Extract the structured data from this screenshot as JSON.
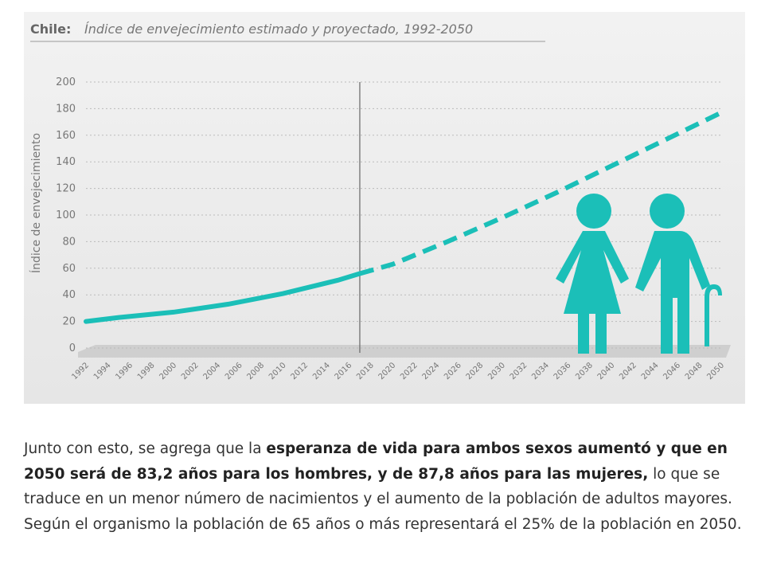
{
  "chart_data": {
    "type": "line",
    "title_prefix": "Chile:",
    "title": "Índice de envejecimiento estimado y proyectado, 1992-2050",
    "y_label": "Índice de envejecimiento",
    "x": [
      1992,
      1995,
      2000,
      2005,
      2010,
      2015,
      2017,
      2020,
      2025,
      2030,
      2035,
      2040,
      2045,
      2050
    ],
    "series": [
      {
        "color": "#1bbfb8",
        "dash": false,
        "values": [
          20,
          23,
          27,
          33,
          41,
          51,
          56,
          null,
          null,
          null,
          null,
          null,
          null,
          null
        ]
      },
      {
        "color": "#1bbfb8",
        "dash": true,
        "values": [
          null,
          null,
          null,
          null,
          null,
          null,
          56,
          63,
          80,
          98,
          117,
          137,
          157,
          177
        ]
      }
    ],
    "divider_x": 2017,
    "xlim": [
      1992,
      2050
    ],
    "xticks": [
      1992,
      1994,
      1996,
      1998,
      2000,
      2002,
      2004,
      2006,
      2008,
      2010,
      2012,
      2014,
      2016,
      2018,
      2020,
      2022,
      2024,
      2026,
      2028,
      2030,
      2032,
      2034,
      2036,
      2038,
      2040,
      2042,
      2044,
      2046,
      2048,
      2050
    ],
    "ylim": [
      0,
      200
    ],
    "yticks": [
      0,
      20,
      40,
      60,
      80,
      100,
      120,
      140,
      160,
      180,
      200
    ],
    "grid": true
  },
  "paragraph": [
    {
      "text": "Junto con esto, se agrega que la ",
      "bold": false
    },
    {
      "text": "esperanza de vida para ambos sexos aumentó y que en 2050 será de 83,2 años para los hombres, y de 87,8 años para las mujeres,",
      "bold": true
    },
    {
      "text": " lo que se traduce en un menor número de nacimientos y el aumento de la población de adultos mayores. Según el organismo la población de 65 años o más representará el 25% de la población en 2050.",
      "bold": false
    }
  ]
}
